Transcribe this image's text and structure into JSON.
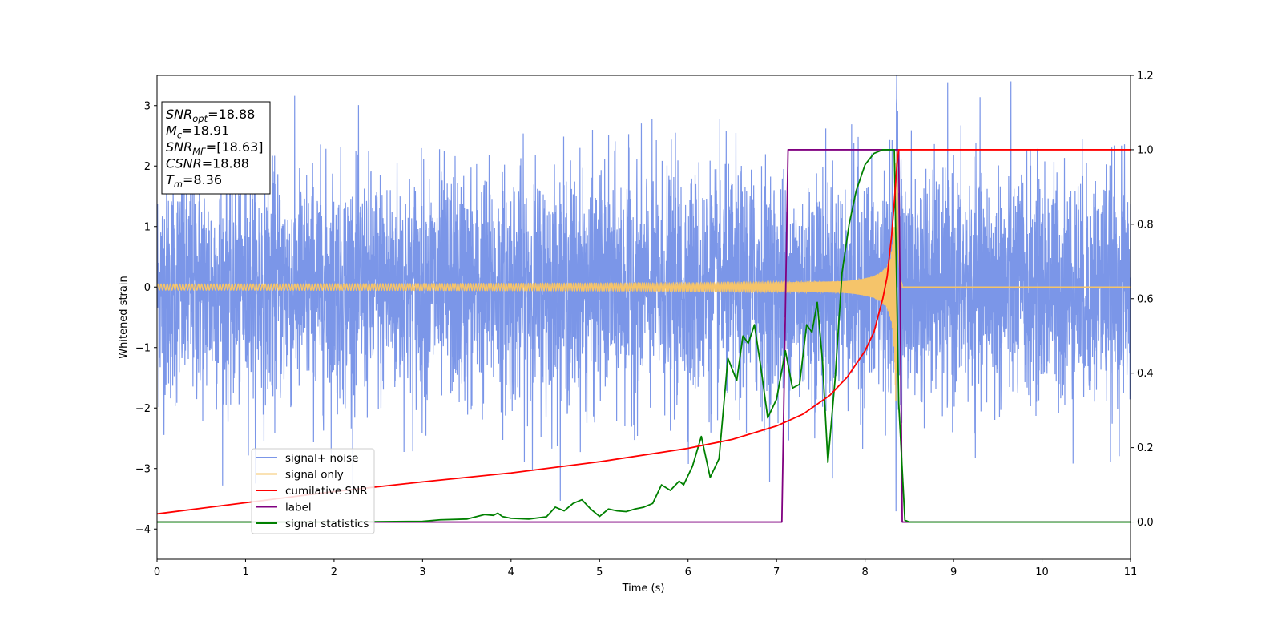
{
  "chart_data": {
    "type": "line",
    "xlabel": "Time (s)",
    "ylabel": "Whitened strain",
    "xlim": [
      0,
      11
    ],
    "ylim_left": [
      -4.5,
      3.5
    ],
    "ylim_right": [
      -0.1,
      1.2
    ],
    "x_ticks": [
      "0",
      "1",
      "2",
      "3",
      "4",
      "5",
      "6",
      "7",
      "8",
      "9",
      "10",
      "11"
    ],
    "y_ticks_left": [
      "−4",
      "−3",
      "−2",
      "−1",
      "0",
      "1",
      "2",
      "3"
    ],
    "y_ticks_right": [
      "0.0",
      "0.2",
      "0.4",
      "0.6",
      "0.8",
      "1.0",
      "1.2"
    ],
    "grid": false,
    "legend_position": "lower-left",
    "info_box": {
      "position": "top-left",
      "lines": [
        {
          "base": "SNR",
          "sub": "opt",
          "value": "=18.88"
        },
        {
          "base": "M",
          "sub": "c",
          "value": "=18.91"
        },
        {
          "base": "SNR",
          "sub": "MF",
          "value": "=[18.63]"
        },
        {
          "base": "CSNR",
          "sub": "",
          "value": "=18.88"
        },
        {
          "base": "T",
          "sub": "m",
          "value": "=8.36"
        }
      ]
    },
    "series": [
      {
        "name": "signal+ noise",
        "axis": "left",
        "color": "#7b96e8",
        "description_values": {
          "noise_std": 0.95,
          "x_range": [
            0,
            11
          ]
        }
      },
      {
        "name": "signal only",
        "axis": "left",
        "color": "#f5c46a",
        "chirp": {
          "t_merge": 8.36,
          "amplitude_start": 0.05,
          "amplitude_peak": 3.2,
          "ringdown_end": 8.42
        }
      },
      {
        "name": "cumilative SNR",
        "axis": "right",
        "color": "#ff0000",
        "x": [
          0,
          1,
          2,
          3,
          4,
          5,
          6,
          6.5,
          7,
          7.3,
          7.6,
          7.8,
          8.0,
          8.1,
          8.2,
          8.25,
          8.3,
          8.33,
          8.36,
          8.38,
          11
        ],
        "y": [
          0.022,
          0.052,
          0.082,
          0.108,
          0.132,
          0.162,
          0.198,
          0.222,
          0.258,
          0.29,
          0.34,
          0.39,
          0.46,
          0.51,
          0.6,
          0.66,
          0.77,
          0.86,
          0.96,
          1.0,
          1.0
        ]
      },
      {
        "name": "label",
        "axis": "right",
        "color": "#800080",
        "x": [
          0,
          7.06,
          7.13,
          8.38,
          8.42,
          11
        ],
        "y": [
          0.0,
          0.0,
          1.0,
          1.0,
          0.0,
          0.0
        ]
      },
      {
        "name": "signal statistics",
        "axis": "right",
        "color": "#008000",
        "x": [
          0,
          1,
          2,
          3,
          3.2,
          3.5,
          3.7,
          3.8,
          3.85,
          3.9,
          4.0,
          4.2,
          4.4,
          4.5,
          4.6,
          4.7,
          4.8,
          4.9,
          5.0,
          5.1,
          5.2,
          5.3,
          5.4,
          5.5,
          5.6,
          5.7,
          5.8,
          5.9,
          5.95,
          6.05,
          6.15,
          6.25,
          6.35,
          6.45,
          6.55,
          6.62,
          6.68,
          6.75,
          6.82,
          6.9,
          7.0,
          7.1,
          7.18,
          7.26,
          7.34,
          7.4,
          7.46,
          7.52,
          7.58,
          7.66,
          7.74,
          7.82,
          7.9,
          8.0,
          8.1,
          8.2,
          8.3,
          8.33,
          8.38,
          8.45,
          8.5,
          11
        ],
        "y": [
          0.0,
          0.0,
          0.0,
          0.002,
          0.006,
          0.008,
          0.02,
          0.018,
          0.024,
          0.015,
          0.01,
          0.008,
          0.014,
          0.04,
          0.03,
          0.05,
          0.06,
          0.035,
          0.015,
          0.035,
          0.03,
          0.028,
          0.035,
          0.04,
          0.05,
          0.1,
          0.085,
          0.11,
          0.1,
          0.15,
          0.23,
          0.12,
          0.17,
          0.44,
          0.38,
          0.5,
          0.48,
          0.53,
          0.42,
          0.28,
          0.33,
          0.46,
          0.36,
          0.37,
          0.53,
          0.51,
          0.59,
          0.43,
          0.16,
          0.38,
          0.67,
          0.8,
          0.89,
          0.96,
          0.99,
          1.0,
          1.0,
          1.0,
          0.32,
          0.005,
          0.0,
          0.0
        ]
      }
    ]
  }
}
